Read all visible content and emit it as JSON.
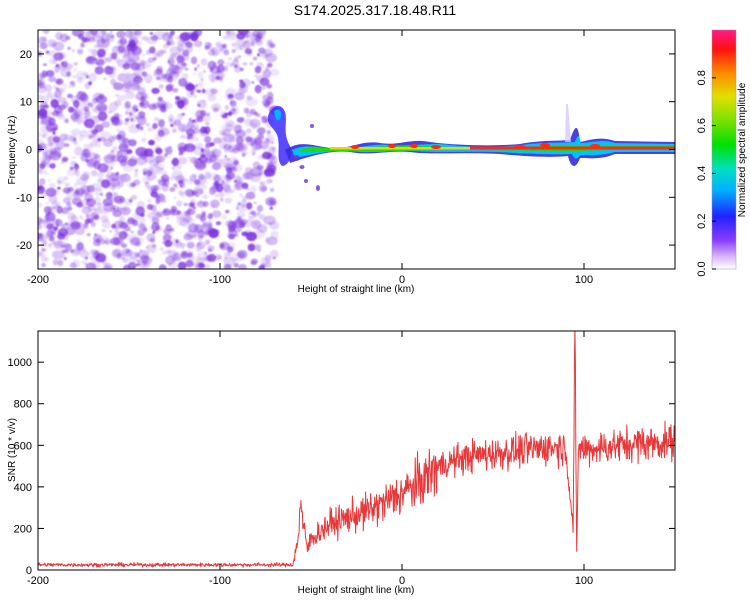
{
  "title": "S174.2025.317.18.48.R11",
  "colors": {
    "line": "#e8383a",
    "carrier": "#cc1010",
    "noise_dots": "#7a2fe0",
    "frame": "#000000"
  },
  "chart_data": [
    {
      "type": "heatmap",
      "name": "spectrogram",
      "xlabel": "Height of straight line (km)",
      "ylabel": "Frequency (Hz)",
      "xlim": [
        -200,
        150
      ],
      "ylim": [
        -25,
        25
      ],
      "xticks": [
        -200,
        -100,
        0,
        100
      ],
      "yticks": [
        -20,
        -10,
        0,
        10,
        20
      ],
      "colorbar": {
        "label": "Normalized spectral amplitude",
        "range": [
          0,
          1
        ],
        "ticks": [
          "0.0",
          "0.2",
          "0.4",
          "0.6",
          "0.8"
        ],
        "tick_values": [
          0.0,
          0.2,
          0.4,
          0.6,
          0.8
        ]
      },
      "noise_region_km": [
        -200,
        -70
      ],
      "signal_onset_km": -70,
      "signal_freq_hz": 0
    },
    {
      "type": "line",
      "name": "snr",
      "xlabel": "Height of straight line (km)",
      "ylabel": "SNR (10 * v/v)",
      "xlim": [
        -200,
        150
      ],
      "ylim": [
        0,
        1150
      ],
      "xticks": [
        -200,
        -100,
        0,
        100
      ],
      "yticks": [
        0,
        200,
        400,
        600,
        800,
        1000
      ],
      "series": [
        {
          "name": "SNR",
          "x": [
            -200,
            -150,
            -100,
            -60,
            -57,
            -56,
            -54,
            -52,
            -50,
            -40,
            -30,
            -20,
            -10,
            0,
            10,
            20,
            30,
            40,
            50,
            60,
            70,
            80,
            90,
            94,
            95,
            96,
            97,
            100,
            110,
            120,
            130,
            140,
            150
          ],
          "y": [
            25,
            25,
            25,
            25,
            150,
            330,
            200,
            100,
            150,
            220,
            250,
            280,
            320,
            370,
            420,
            500,
            530,
            550,
            560,
            570,
            580,
            590,
            590,
            200,
            1100,
            80,
            600,
            580,
            590,
            600,
            610,
            610,
            620
          ]
        }
      ]
    }
  ]
}
